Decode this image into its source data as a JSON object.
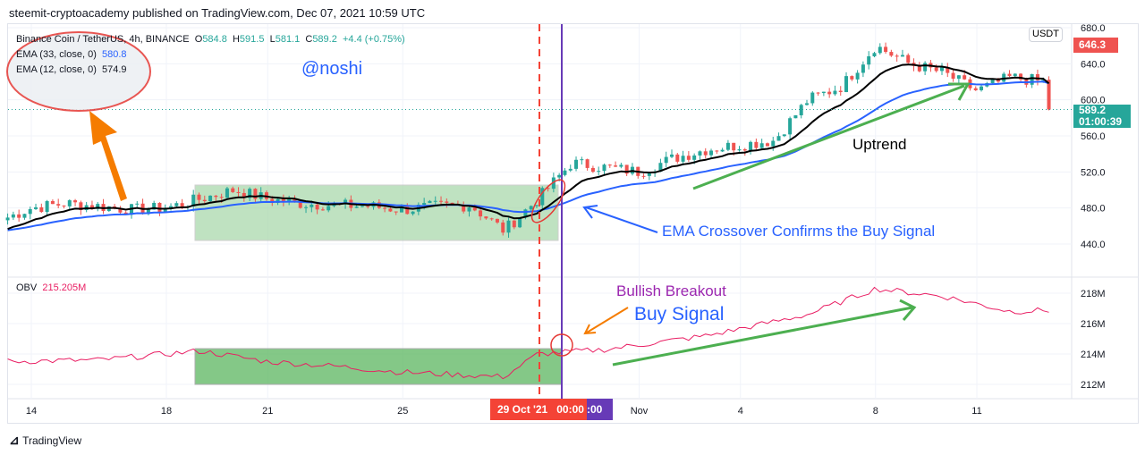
{
  "header": {
    "published": "steemit-cryptoacademy published on TradingView.com, Dec 07, 2021 10:59 UTC"
  },
  "legend": {
    "symbol": "Binance Coin / TetherUS, 4h, BINANCE",
    "o_label": "O",
    "o": "584.8",
    "h_label": "H",
    "h": "591.5",
    "l_label": "L",
    "l": "581.1",
    "c_label": "C",
    "c": "589.2",
    "change": "+4.4 (+0.75%)",
    "ema1": "EMA (33, close, 0)",
    "ema1_val": "580.8",
    "ema2": "EMA (12, close, 0)",
    "ema2_val": "574.9",
    "obv": "OBV",
    "obv_val": "215.205M"
  },
  "annotations": {
    "author": "@noshi",
    "uptrend": "Uptrend",
    "crossover": "EMA Crossover Confirms the Buy Signal",
    "breakout": "Bullish Breakout",
    "buy": "Buy Signal"
  },
  "price_axis": {
    "currency": "USDT",
    "last_high_label": "646.3",
    "price_label": "589.2",
    "countdown": "01:00:39"
  },
  "time_axis": {
    "crosshair_label": "29 Oct '21",
    "time_label": "00:00",
    "time2_label": ":00"
  },
  "footer": {
    "brand": "TradingView"
  },
  "colors": {
    "up": "#26a69a",
    "down": "#ef5350",
    "ema33": "#2962ff",
    "ema12": "#000000",
    "obv": "#e91e63"
  },
  "chart_data": [
    {
      "type": "candlestick",
      "title": "Binance Coin / TetherUS, 4h",
      "ylim": [
        420,
        690
      ],
      "yticks": [
        "680.0",
        "640.0",
        "600.0",
        "560.0",
        "520.0",
        "480.0",
        "440.0"
      ],
      "xticks": [
        "14",
        "18",
        "21",
        "25",
        "Nov",
        "4",
        "8",
        "11"
      ],
      "x_days": [
        13,
        14,
        15,
        16,
        17,
        18,
        19,
        20,
        21,
        22,
        23,
        24,
        25,
        26,
        27,
        28,
        29,
        30,
        31,
        32,
        33,
        34,
        35,
        36,
        37,
        38,
        39,
        40,
        41,
        42,
        43,
        44,
        45,
        46
      ],
      "daily_close": [
        465,
        480,
        485,
        482,
        478,
        480,
        490,
        500,
        490,
        485,
        483,
        482,
        478,
        482,
        483,
        455,
        490,
        530,
        525,
        520,
        535,
        545,
        550,
        555,
        600,
        615,
        660,
        640,
        630,
        610,
        625,
        620,
        630,
        646
      ],
      "series": [
        "EMA 33",
        "EMA 12"
      ]
    },
    {
      "type": "line",
      "title": "OBV",
      "ylim": [
        211,
        219.5
      ],
      "yticks": [
        "218M",
        "216M",
        "214M",
        "212M"
      ],
      "x_days": [
        13,
        16,
        19,
        21,
        23,
        25,
        28,
        29,
        31,
        34,
        37,
        39,
        41,
        43,
        46
      ],
      "values": [
        213.5,
        213.6,
        214.2,
        213.5,
        213.2,
        212.8,
        212.5,
        214.0,
        214.3,
        215.2,
        216.6,
        218.3,
        217.8,
        216.8,
        217.0
      ]
    }
  ]
}
